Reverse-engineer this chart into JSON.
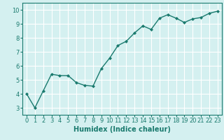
{
  "x": [
    0,
    1,
    2,
    3,
    4,
    5,
    6,
    7,
    8,
    9,
    10,
    11,
    12,
    13,
    14,
    15,
    16,
    17,
    18,
    19,
    20,
    21,
    22,
    23
  ],
  "y": [
    4.0,
    3.0,
    4.2,
    5.4,
    5.3,
    5.3,
    4.8,
    4.6,
    4.55,
    5.8,
    6.55,
    7.45,
    7.75,
    8.35,
    8.85,
    8.6,
    9.4,
    9.65,
    9.4,
    9.1,
    9.35,
    9.45,
    9.75,
    9.9
  ],
  "line_color": "#1a7a6e",
  "marker": "D",
  "marker_size": 2.0,
  "bg_color": "#d4f0f0",
  "grid_color": "#ffffff",
  "xlabel": "Humidex (Indice chaleur)",
  "ylim": [
    2.5,
    10.5
  ],
  "xlim": [
    -0.5,
    23.5
  ],
  "yticks": [
    3,
    4,
    5,
    6,
    7,
    8,
    9,
    10
  ],
  "xticks": [
    0,
    1,
    2,
    3,
    4,
    5,
    6,
    7,
    8,
    9,
    10,
    11,
    12,
    13,
    14,
    15,
    16,
    17,
    18,
    19,
    20,
    21,
    22,
    23
  ],
  "tick_color": "#1a7a6e",
  "label_color": "#1a7a6e",
  "xlabel_fontsize": 7,
  "tick_fontsize": 6,
  "linewidth": 1.0
}
